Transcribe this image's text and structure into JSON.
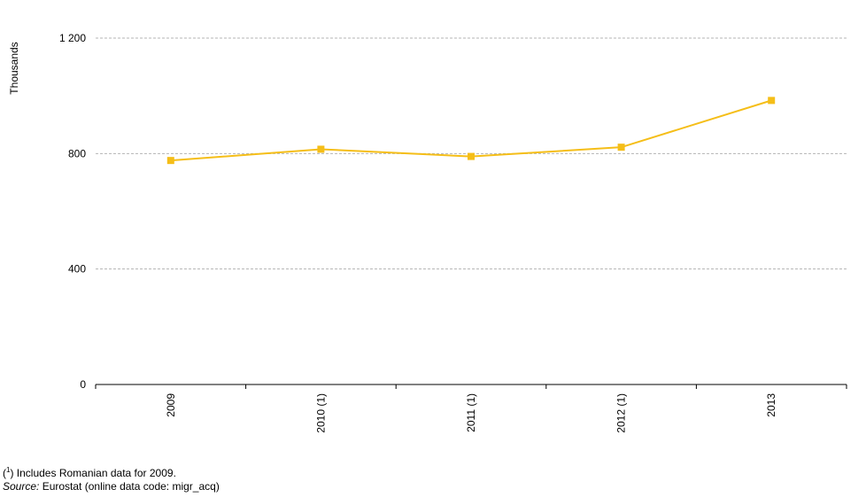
{
  "chart_data": {
    "type": "line",
    "ylabel": "Thousands",
    "ylim": [
      0,
      1200
    ],
    "yticks": [
      0,
      400,
      800,
      1200
    ],
    "ytick_labels": [
      "0",
      "400",
      "800",
      "1 200"
    ],
    "categories": [
      "2009",
      "2010 (1)",
      "2011 (1)",
      "2012 (1)",
      "2013"
    ],
    "series": [
      {
        "values": [
          776,
          815,
          790,
          822,
          984
        ],
        "color": "#F5BE18"
      }
    ],
    "grid": true,
    "gridline_color": "#b4b4b4",
    "legend": "none"
  },
  "footnotes": {
    "note_open": "(",
    "note_sup": "1",
    "note_close": ") Includes Romanian data for 2009.",
    "source_label": "Source:",
    "source_text": "Eurostat (online data code: migr_acq)"
  }
}
